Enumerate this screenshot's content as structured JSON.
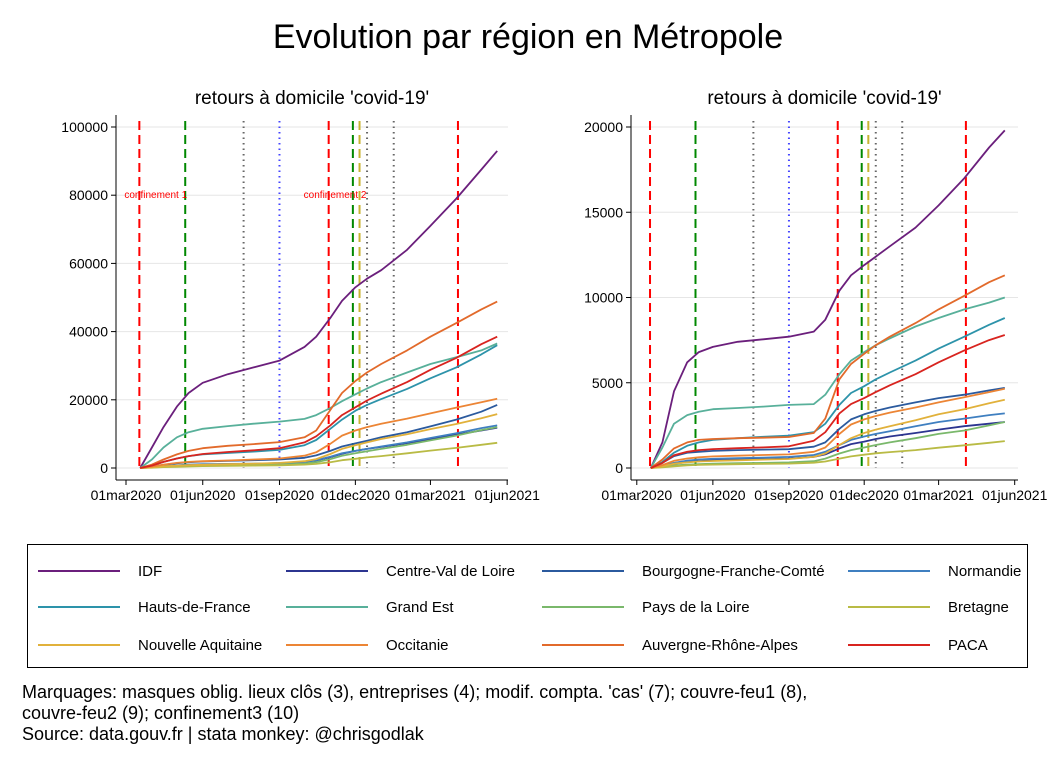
{
  "title": "Evolution par région en Métropole",
  "chart_data": [
    {
      "type": "line",
      "title": "retours à domicile 'covid-19'",
      "ylim": [
        0,
        100000
      ],
      "yticks": [
        0,
        20000,
        40000,
        60000,
        80000,
        100000
      ],
      "ytick_labels": [
        "0",
        "20000",
        "40000",
        "60000",
        "80000",
        "100000"
      ],
      "xtick_labels": [
        "01mar2020",
        "01jun2020",
        "01sep2020",
        "01dec2020",
        "01mar2021",
        "01jun2021"
      ],
      "grid": true,
      "annotations": [
        "confinement 1",
        "confinement 2"
      ],
      "x": [
        "2020-03-18",
        "2020-04-01",
        "2020-04-15",
        "2020-05-01",
        "2020-05-15",
        "2020-06-01",
        "2020-07-01",
        "2020-08-01",
        "2020-09-01",
        "2020-10-01",
        "2020-10-15",
        "2020-11-01",
        "2020-11-15",
        "2020-12-01",
        "2020-12-15",
        "2021-01-01",
        "2021-02-01",
        "2021-03-01",
        "2021-04-01",
        "2021-05-01",
        "2021-05-20"
      ],
      "series": [
        {
          "name": "IDF",
          "color": "#6b1f7c",
          "values": [
            0,
            6000,
            12000,
            18000,
            22000,
            25000,
            27500,
            29500,
            31500,
            35500,
            38500,
            44000,
            49000,
            53000,
            55500,
            58000,
            64000,
            71000,
            79000,
            87500,
            93000
          ]
        },
        {
          "name": "Centre-Val de Loire",
          "color": "#2c3590",
          "values": [
            0,
            200,
            500,
            700,
            900,
            1000,
            1100,
            1200,
            1400,
            1800,
            2200,
            3200,
            4200,
            5000,
            5600,
            6200,
            7300,
            8500,
            9800,
            11000,
            11800
          ]
        },
        {
          "name": "Bourgogne-Franche-Comté",
          "color": "#2b5a9e",
          "values": [
            0,
            400,
            900,
            1400,
            1700,
            1900,
            2100,
            2300,
            2500,
            3000,
            3700,
            5000,
            6300,
            7200,
            8000,
            9000,
            10500,
            12200,
            14200,
            16500,
            18500
          ]
        },
        {
          "name": "Normandie",
          "color": "#3f7fc0",
          "values": [
            0,
            250,
            550,
            800,
            1000,
            1100,
            1200,
            1300,
            1400,
            1800,
            2300,
            3300,
            4300,
            5000,
            5600,
            6300,
            7500,
            8800,
            10200,
            11700,
            12500
          ]
        },
        {
          "name": "Hauts-de-France",
          "color": "#2d93aa",
          "values": [
            0,
            700,
            1800,
            2800,
            3500,
            4000,
            4400,
            4800,
            5300,
            6700,
            8200,
            11500,
            14200,
            16800,
            18500,
            20200,
            23200,
            26300,
            29500,
            33300,
            36000
          ]
        },
        {
          "name": "Grand Est",
          "color": "#58b09a",
          "values": [
            0,
            2500,
            6000,
            9000,
            10500,
            11500,
            12300,
            13000,
            13600,
            14400,
            15500,
            17600,
            19600,
            21600,
            23300,
            25200,
            28000,
            30500,
            32500,
            34500,
            36500
          ]
        },
        {
          "name": "Pays de la Loire",
          "color": "#7ab86b",
          "values": [
            0,
            150,
            350,
            500,
            600,
            700,
            800,
            900,
            1000,
            1300,
            1700,
            2600,
            3600,
            4300,
            4900,
            5600,
            6800,
            8100,
            9500,
            11100,
            12000
          ]
        },
        {
          "name": "Bretagne",
          "color": "#b9bb45",
          "values": [
            0,
            100,
            250,
            350,
            450,
            550,
            650,
            700,
            800,
            1000,
            1200,
            1700,
            2300,
            2700,
            3100,
            3500,
            4300,
            5100,
            5900,
            6800,
            7400
          ]
        },
        {
          "name": "Nouvelle Aquitaine",
          "color": "#e1b13b",
          "values": [
            0,
            200,
            500,
            700,
            850,
            950,
            1100,
            1300,
            1500,
            2000,
            2600,
            4100,
            5600,
            6700,
            7500,
            8500,
            9900,
            11400,
            12900,
            14600,
            15800
          ]
        },
        {
          "name": "Occitanie",
          "color": "#ec8535",
          "values": [
            0,
            400,
            1000,
            1500,
            1800,
            2000,
            2200,
            2500,
            2800,
            3600,
            4600,
            7100,
            9500,
            11000,
            12000,
            13000,
            14500,
            16000,
            17700,
            19300,
            20300
          ]
        },
        {
          "name": "Auvergne-Rhône-Alpes",
          "color": "#e26a2b",
          "values": [
            0,
            1000,
            2500,
            4000,
            5000,
            5800,
            6500,
            7000,
            7600,
            9000,
            11000,
            17000,
            22000,
            25500,
            28000,
            30500,
            34500,
            38500,
            42500,
            46500,
            48800
          ]
        },
        {
          "name": "PACA",
          "color": "#d8241f",
          "values": [
            0,
            700,
            1800,
            2800,
            3500,
            4100,
            4700,
            5200,
            5800,
            7500,
            9300,
            12500,
            15500,
            17800,
            19800,
            21800,
            25200,
            28800,
            32300,
            36300,
            38500
          ]
        }
      ]
    },
    {
      "type": "line",
      "title": "retours à domicile 'covid-19'",
      "ylim": [
        0,
        20000
      ],
      "yticks": [
        0,
        5000,
        10000,
        15000,
        20000
      ],
      "ytick_labels": [
        "0",
        "5000",
        "10000",
        "15000",
        "20000"
      ],
      "xtick_labels": [
        "01mar2020",
        "01jun2020",
        "01sep2020",
        "01dec2020",
        "01mar2021",
        "01jun2021"
      ],
      "grid": true,
      "x": [
        "2020-03-18",
        "2020-04-01",
        "2020-04-15",
        "2020-05-01",
        "2020-05-15",
        "2020-06-01",
        "2020-07-01",
        "2020-08-01",
        "2020-09-01",
        "2020-10-01",
        "2020-10-15",
        "2020-11-01",
        "2020-11-15",
        "2020-12-01",
        "2020-12-15",
        "2021-01-01",
        "2021-02-01",
        "2021-03-01",
        "2021-04-01",
        "2021-05-01",
        "2021-05-20"
      ],
      "series": [
        {
          "name": "IDF",
          "color": "#6b1f7c",
          "values": [
            0,
            1500,
            4500,
            6200,
            6800,
            7100,
            7400,
            7550,
            7700,
            8000,
            8700,
            10400,
            11300,
            11900,
            12400,
            13000,
            14100,
            15400,
            17000,
            18800,
            19800
          ]
        },
        {
          "name": "Centre-Val de Loire",
          "color": "#2c3590",
          "values": [
            0,
            100,
            250,
            350,
            400,
            450,
            500,
            520,
            550,
            650,
            800,
            1150,
            1400,
            1550,
            1700,
            1850,
            2050,
            2250,
            2450,
            2600,
            2700
          ]
        },
        {
          "name": "Bourgogne-Franche-Comté",
          "color": "#2b5a9e",
          "values": [
            0,
            300,
            700,
            900,
            950,
            1000,
            1050,
            1080,
            1100,
            1250,
            1500,
            2300,
            2850,
            3150,
            3350,
            3550,
            3850,
            4100,
            4300,
            4550,
            4700
          ]
        },
        {
          "name": "Normandie",
          "color": "#3f7fc0",
          "values": [
            0,
            120,
            300,
            430,
            500,
            540,
            580,
            610,
            650,
            760,
            950,
            1350,
            1650,
            1850,
            2000,
            2150,
            2450,
            2700,
            2900,
            3100,
            3200
          ]
        },
        {
          "name": "Hauts-de-France",
          "color": "#2d93aa",
          "values": [
            0,
            350,
            900,
            1300,
            1500,
            1650,
            1750,
            1830,
            1900,
            2100,
            2600,
            3700,
            4400,
            4800,
            5200,
            5600,
            6300,
            7000,
            7700,
            8400,
            8800
          ]
        },
        {
          "name": "Grand Est",
          "color": "#58b09a",
          "values": [
            0,
            1200,
            2600,
            3100,
            3300,
            3450,
            3520,
            3600,
            3700,
            3750,
            4300,
            5500,
            6300,
            6800,
            7200,
            7600,
            8300,
            8800,
            9300,
            9700,
            10000
          ]
        },
        {
          "name": "Pays de la Loire",
          "color": "#7ab86b",
          "values": [
            0,
            60,
            150,
            200,
            230,
            260,
            280,
            300,
            330,
            400,
            550,
            850,
            1050,
            1200,
            1350,
            1500,
            1750,
            2000,
            2200,
            2500,
            2700
          ]
        },
        {
          "name": "Bretagne",
          "color": "#b9bb45",
          "values": [
            0,
            40,
            100,
            150,
            180,
            200,
            220,
            240,
            260,
            310,
            380,
            550,
            680,
            780,
            860,
            930,
            1050,
            1190,
            1330,
            1480,
            1580
          ]
        },
        {
          "name": "Nouvelle Aquitaine",
          "color": "#e1b13b",
          "values": [
            0,
            100,
            250,
            330,
            380,
            410,
            450,
            490,
            530,
            650,
            850,
            1350,
            1750,
            2050,
            2250,
            2450,
            2800,
            3150,
            3450,
            3800,
            4000
          ]
        },
        {
          "name": "Occitanie",
          "color": "#ec8535",
          "values": [
            0,
            170,
            420,
            560,
            630,
            680,
            720,
            760,
            800,
            950,
            1200,
            2000,
            2550,
            2850,
            3050,
            3250,
            3550,
            3850,
            4150,
            4450,
            4650
          ]
        },
        {
          "name": "Auvergne-Rhône-Alpes",
          "color": "#e26a2b",
          "values": [
            0,
            500,
            1150,
            1500,
            1650,
            1700,
            1750,
            1780,
            1820,
            2050,
            2900,
            5200,
            6100,
            6700,
            7200,
            7700,
            8500,
            9300,
            10100,
            10900,
            11300
          ]
        },
        {
          "name": "PACA",
          "color": "#d8241f",
          "values": [
            0,
            300,
            750,
            950,
            1050,
            1110,
            1160,
            1210,
            1270,
            1600,
            2100,
            3200,
            3750,
            4100,
            4450,
            4850,
            5500,
            6200,
            6900,
            7500,
            7800
          ]
        }
      ]
    }
  ],
  "legend": [
    {
      "label": "IDF",
      "color": "#6b1f7c"
    },
    {
      "label": "Centre-Val de Loire",
      "color": "#2c3590"
    },
    {
      "label": "Bourgogne-Franche-Comté",
      "color": "#2b5a9e"
    },
    {
      "label": "Normandie",
      "color": "#3f7fc0"
    },
    {
      "label": "Hauts-de-France",
      "color": "#2d93aa"
    },
    {
      "label": "Grand Est",
      "color": "#58b09a"
    },
    {
      "label": "Pays de la Loire",
      "color": "#7ab86b"
    },
    {
      "label": "Bretagne",
      "color": "#b9bb45"
    },
    {
      "label": "Nouvelle Aquitaine",
      "color": "#e1b13b"
    },
    {
      "label": "Occitanie",
      "color": "#ec8535"
    },
    {
      "label": "Auvergne-Rhône-Alpes",
      "color": "#e26a2b"
    },
    {
      "label": "PACA",
      "color": "#d8241f"
    }
  ],
  "event_markers": [
    {
      "date": "2020-03-17",
      "style": "dashed",
      "color": "#ff0000"
    },
    {
      "date": "2020-05-11",
      "style": "dashed",
      "color": "#008800"
    },
    {
      "date": "2020-07-20",
      "style": "dotted",
      "color": "#666666"
    },
    {
      "date": "2020-09-01",
      "style": "dotted",
      "color": "#4444ff"
    },
    {
      "date": "2020-10-30",
      "style": "dashed",
      "color": "#ff0000"
    },
    {
      "date": "2020-11-28",
      "style": "dashed",
      "color": "#008800"
    },
    {
      "date": "2020-12-06",
      "style": "dashed",
      "color": "#c8b432"
    },
    {
      "date": "2020-12-15",
      "style": "dotted",
      "color": "#666666"
    },
    {
      "date": "2021-01-16",
      "style": "dotted",
      "color": "#666666"
    },
    {
      "date": "2021-04-03",
      "style": "dashed",
      "color": "#ff0000"
    }
  ],
  "footer": {
    "line1": "Marquages: masques oblig. lieux clôs (3), entreprises (4); modif. compta. 'cas' (7); couvre-feu1 (8),",
    "line2": "couvre-feu2 (9); confinement3 (10)",
    "line3": "Source: data.gouv.fr | stata monkey: @chrisgodlak"
  }
}
